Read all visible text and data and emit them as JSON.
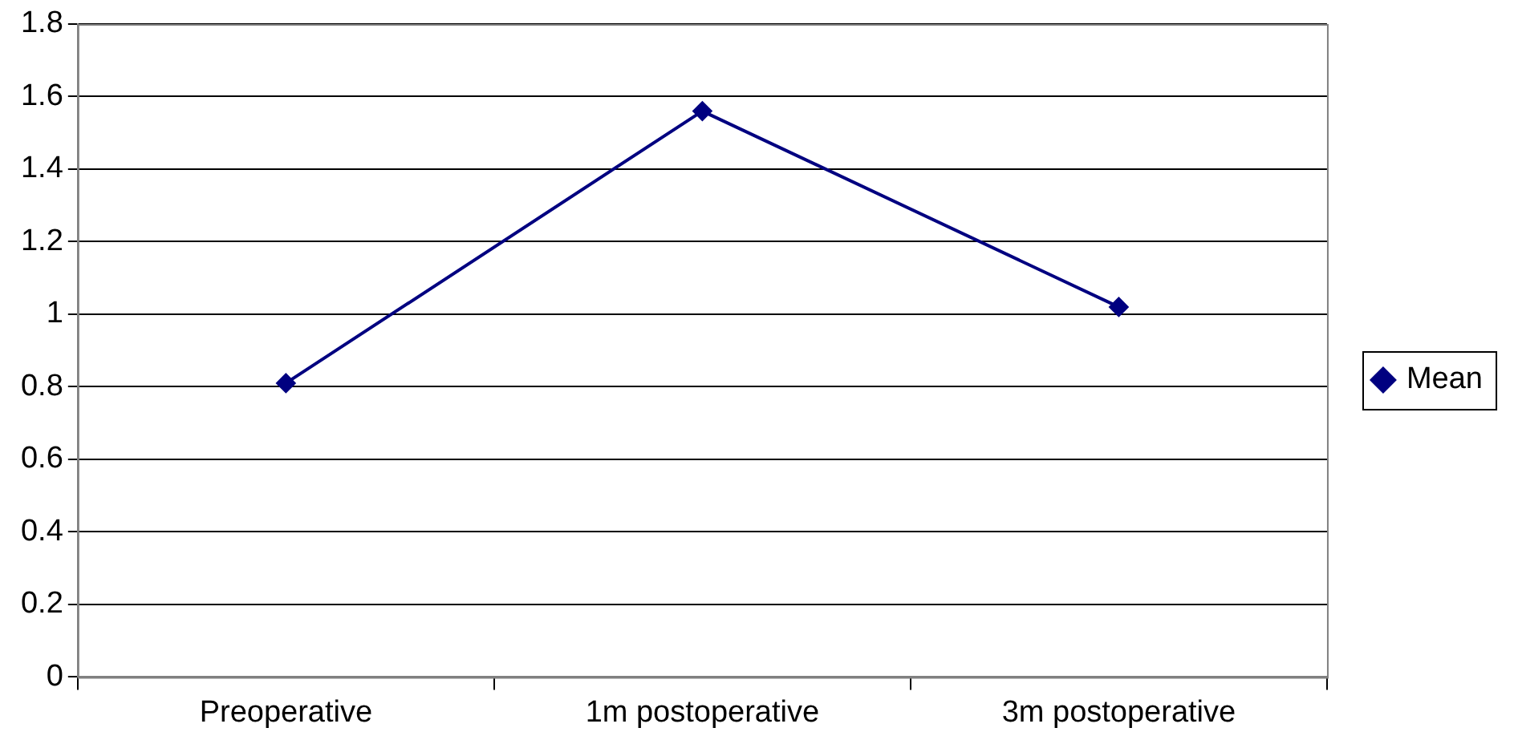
{
  "chart_data": {
    "type": "line",
    "categories": [
      "Preoperative",
      "1m postoperative",
      "3m postoperative"
    ],
    "series": [
      {
        "name": "Mean",
        "color": "#000080",
        "values": [
          0.81,
          1.56,
          1.02
        ]
      }
    ],
    "ylim": [
      0,
      1.8
    ],
    "yticks": [
      0,
      0.2,
      0.4,
      0.6,
      0.8,
      1,
      1.2,
      1.4,
      1.6,
      1.8
    ],
    "grid": "y",
    "legend": "right",
    "marker": "diamond",
    "line_style": "solid"
  }
}
